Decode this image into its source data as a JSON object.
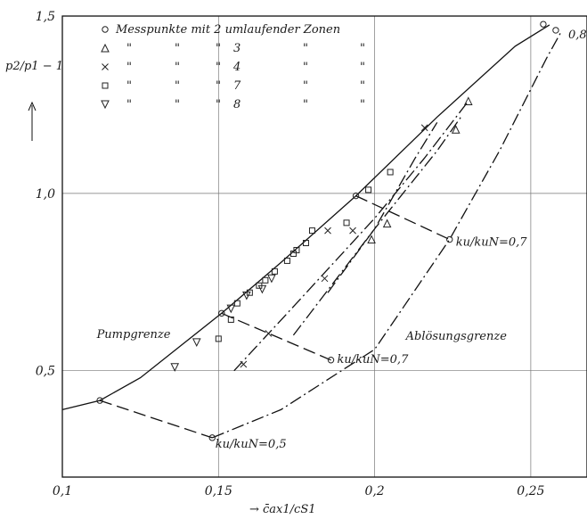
{
  "chart_data": {
    "type": "scatter",
    "title": "",
    "xlabel": "→ c̄ax1/cS1",
    "ylabel": "p2/p1 − 1",
    "xlim": [
      0.1,
      0.268
    ],
    "ylim": [
      0.2,
      1.5
    ],
    "x_ticks": [
      0.1,
      0.15,
      0.2,
      0.25
    ],
    "x_tick_labels": [
      "0,1",
      "0,15",
      "0,2",
      "0,25"
    ],
    "y_ticks": [
      0.5,
      1.0,
      1.5
    ],
    "y_tick_labels": [
      "0,5",
      "1,0",
      "1,5"
    ],
    "grid": true,
    "legend": {
      "placement": "top-left",
      "header": "Messpunkte mit",
      "suffix": "umlaufender Zonen",
      "ditto": "\"",
      "entries": [
        {
          "symbol": "circle",
          "zones": "2"
        },
        {
          "symbol": "triangle-up",
          "zones": "3"
        },
        {
          "symbol": "cross",
          "zones": "4"
        },
        {
          "symbol": "square",
          "zones": "7"
        },
        {
          "symbol": "triangle-down",
          "zones": "8"
        }
      ]
    },
    "lines": [
      {
        "role": "pumpgrenze",
        "style": "solid",
        "points": [
          [
            0.1,
            0.39
          ],
          [
            0.112,
            0.416
          ],
          [
            0.125,
            0.48
          ],
          [
            0.14,
            0.585
          ],
          [
            0.151,
            0.662
          ],
          [
            0.17,
            0.805
          ],
          [
            0.194,
            0.993
          ],
          [
            0.22,
            1.215
          ],
          [
            0.245,
            1.415
          ],
          [
            0.256,
            1.475
          ]
        ]
      },
      {
        "role": "ablosungsgrenze",
        "style": "dashdot",
        "points": [
          [
            0.148,
            0.311
          ],
          [
            0.17,
            0.39
          ],
          [
            0.2,
            0.56
          ],
          [
            0.224,
            0.87
          ],
          [
            0.24,
            1.12
          ],
          [
            0.255,
            1.38
          ],
          [
            0.26,
            1.46
          ]
        ]
      },
      {
        "role": "speed-0.5",
        "style": "dashed",
        "points": [
          [
            0.112,
            0.416
          ],
          [
            0.148,
            0.311
          ]
        ]
      },
      {
        "role": "speed-0.7",
        "style": "dashed",
        "points": [
          [
            0.151,
            0.662
          ],
          [
            0.186,
            0.53
          ]
        ]
      },
      {
        "role": "speed-0.8",
        "style": "dashed",
        "points": [
          [
            0.194,
            0.993
          ],
          [
            0.224,
            0.87
          ]
        ]
      },
      {
        "role": "throttle-1",
        "style": "dashdot",
        "points": [
          [
            0.155,
            0.5
          ],
          [
            0.175,
            0.69
          ],
          [
            0.2,
            0.93
          ],
          [
            0.216,
            1.1
          ],
          [
            0.23,
            1.26
          ]
        ]
      },
      {
        "role": "throttle-2",
        "style": "dashdot",
        "points": [
          [
            0.174,
            0.6
          ],
          [
            0.2,
            0.9
          ],
          [
            0.22,
            1.12
          ],
          [
            0.228,
            1.22
          ]
        ]
      },
      {
        "role": "throttle-3",
        "style": "dashdot",
        "points": [
          [
            0.185,
            0.72
          ],
          [
            0.2,
            0.9
          ],
          [
            0.213,
            1.1
          ],
          [
            0.22,
            1.2
          ]
        ]
      }
    ],
    "series": [
      {
        "symbol": "circle",
        "points": [
          [
            0.112,
            0.416
          ],
          [
            0.148,
            0.311
          ],
          [
            0.151,
            0.662
          ],
          [
            0.186,
            0.53
          ],
          [
            0.194,
            0.993
          ],
          [
            0.224,
            0.87
          ],
          [
            0.254,
            1.477
          ],
          [
            0.258,
            1.46
          ]
        ]
      },
      {
        "symbol": "triangle-up",
        "points": [
          [
            0.199,
            0.87
          ],
          [
            0.204,
            0.915
          ],
          [
            0.226,
            1.18
          ],
          [
            0.23,
            1.26
          ]
        ]
      },
      {
        "symbol": "cross",
        "points": [
          [
            0.158,
            0.518
          ],
          [
            0.166,
            0.605
          ],
          [
            0.184,
            0.76
          ],
          [
            0.193,
            0.895
          ],
          [
            0.185,
            0.895
          ],
          [
            0.216,
            1.185
          ]
        ]
      },
      {
        "symbol": "square",
        "points": [
          [
            0.15,
            0.59
          ],
          [
            0.154,
            0.644
          ],
          [
            0.156,
            0.69
          ],
          [
            0.16,
            0.72
          ],
          [
            0.163,
            0.74
          ],
          [
            0.165,
            0.755
          ],
          [
            0.168,
            0.78
          ],
          [
            0.172,
            0.81
          ],
          [
            0.174,
            0.83
          ],
          [
            0.175,
            0.84
          ],
          [
            0.178,
            0.86
          ],
          [
            0.18,
            0.895
          ],
          [
            0.191,
            0.917
          ],
          [
            0.198,
            1.01
          ],
          [
            0.205,
            1.06
          ]
        ]
      },
      {
        "symbol": "triangle-down",
        "points": [
          [
            0.136,
            0.51
          ],
          [
            0.143,
            0.58
          ],
          [
            0.154,
            0.675
          ],
          [
            0.159,
            0.712
          ],
          [
            0.164,
            0.73
          ],
          [
            0.167,
            0.76
          ]
        ]
      }
    ],
    "annotations": [
      {
        "text": "0,8",
        "x": 0.262,
        "y": 1.45
      },
      {
        "text": "ku/kuN=0,7",
        "x": 0.226,
        "y": 0.865
      },
      {
        "text": "Ablösungsgrenze",
        "x": 0.21,
        "y": 0.6
      },
      {
        "text": "Pumpgrenze",
        "x": 0.111,
        "y": 0.605
      },
      {
        "text": "ku/kuN=0,7",
        "x": 0.188,
        "y": 0.535
      },
      {
        "text": "ku/kuN=0,5",
        "x": 0.149,
        "y": 0.295
      }
    ]
  }
}
